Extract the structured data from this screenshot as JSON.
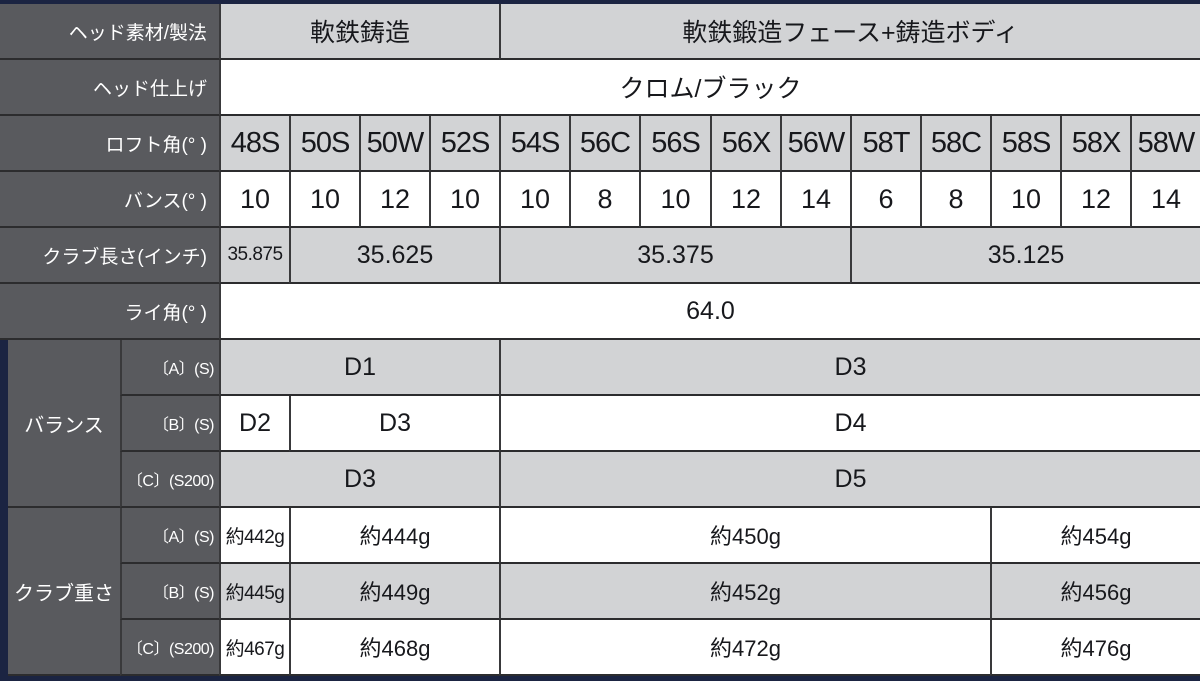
{
  "table_title": "wedge-spec-table",
  "colors": {
    "header_bg": "#595a5e",
    "cell_gray": "#d2d3d5",
    "cell_white": "#ffffff",
    "frame_navy": "#1b2442",
    "border": "#39393b",
    "text": "#17181c",
    "header_text": "#ffffff"
  },
  "columns": [
    "48S",
    "50S",
    "50W",
    "52S",
    "54S",
    "56C",
    "56S",
    "56X",
    "56W",
    "58T",
    "58C",
    "58S",
    "58X",
    "58W"
  ],
  "top_rows": [
    {
      "label": "ヘッド素材/製法",
      "shade": "gray",
      "kind": "data",
      "cells": [
        {
          "text": "軟鉄鋳造",
          "span": 4
        },
        {
          "text": "軟鉄鍛造フェース+鋳造ボディ",
          "span": 10
        }
      ]
    },
    {
      "label": "ヘッド仕上げ",
      "shade": "white",
      "kind": "data",
      "cells": [
        {
          "text": "クロム/ブラック",
          "span": 14
        }
      ]
    },
    {
      "label": "ロフト角(° )",
      "shade": "gray",
      "kind": "colhead",
      "cells": [
        {
          "text": "48S",
          "span": 1
        },
        {
          "text": "50S",
          "span": 1
        },
        {
          "text": "50W",
          "span": 1
        },
        {
          "text": "52S",
          "span": 1
        },
        {
          "text": "54S",
          "span": 1
        },
        {
          "text": "56C",
          "span": 1
        },
        {
          "text": "56S",
          "span": 1
        },
        {
          "text": "56X",
          "span": 1
        },
        {
          "text": "56W",
          "span": 1
        },
        {
          "text": "58T",
          "span": 1
        },
        {
          "text": "58C",
          "span": 1
        },
        {
          "text": "58S",
          "span": 1
        },
        {
          "text": "58X",
          "span": 1
        },
        {
          "text": "58W",
          "span": 1
        }
      ]
    },
    {
      "label": "バンス(° )",
      "shade": "white",
      "kind": "bounce",
      "cells": [
        {
          "text": "10",
          "span": 1
        },
        {
          "text": "10",
          "span": 1
        },
        {
          "text": "12",
          "span": 1
        },
        {
          "text": "10",
          "span": 1
        },
        {
          "text": "10",
          "span": 1
        },
        {
          "text": "8",
          "span": 1
        },
        {
          "text": "10",
          "span": 1
        },
        {
          "text": "12",
          "span": 1
        },
        {
          "text": "14",
          "span": 1
        },
        {
          "text": "6",
          "span": 1
        },
        {
          "text": "8",
          "span": 1
        },
        {
          "text": "10",
          "span": 1
        },
        {
          "text": "12",
          "span": 1
        },
        {
          "text": "14",
          "span": 1
        }
      ]
    },
    {
      "label": "クラブ長さ(インチ)",
      "shade": "gray",
      "kind": "data",
      "cells": [
        {
          "text": "35.875",
          "span": 1
        },
        {
          "text": "35.625",
          "span": 3
        },
        {
          "text": "35.375",
          "span": 5
        },
        {
          "text": "35.125",
          "span": 5
        }
      ]
    },
    {
      "label": "ライ角(° )",
      "shade": "white",
      "kind": "data",
      "cells": [
        {
          "text": "64.0",
          "span": 14
        }
      ]
    }
  ],
  "sections": [
    {
      "label": "バランス",
      "rows": [
        {
          "sublabel": "〔A〕(S)",
          "shade": "gray",
          "kind": "data",
          "cells": [
            {
              "text": "D1",
              "span": 4
            },
            {
              "text": "D3",
              "span": 10
            }
          ]
        },
        {
          "sublabel": "〔B〕(S)",
          "shade": "white",
          "kind": "data",
          "cells": [
            {
              "text": "D2",
              "span": 1
            },
            {
              "text": "D3",
              "span": 3
            },
            {
              "text": "D4",
              "span": 10
            }
          ]
        },
        {
          "sublabel": "〔C〕(S200)",
          "shade": "gray",
          "kind": "data",
          "cells": [
            {
              "text": "D3",
              "span": 4
            },
            {
              "text": "D5",
              "span": 10
            }
          ]
        }
      ]
    },
    {
      "label": "クラブ重さ",
      "rows": [
        {
          "sublabel": "〔A〕(S)",
          "shade": "white",
          "kind": "weight",
          "cells": [
            {
              "text": "約442g",
              "span": 1
            },
            {
              "text": "約444g",
              "span": 3
            },
            {
              "text": "約450g",
              "span": 7
            },
            {
              "text": "約454g",
              "span": 3
            }
          ]
        },
        {
          "sublabel": "〔B〕(S)",
          "shade": "gray",
          "kind": "weight",
          "cells": [
            {
              "text": "約445g",
              "span": 1
            },
            {
              "text": "約449g",
              "span": 3
            },
            {
              "text": "約452g",
              "span": 7
            },
            {
              "text": "約456g",
              "span": 3
            }
          ]
        },
        {
          "sublabel": "〔C〕(S200)",
          "shade": "white",
          "kind": "weight",
          "cells": [
            {
              "text": "約467g",
              "span": 1
            },
            {
              "text": "約468g",
              "span": 3
            },
            {
              "text": "約472g",
              "span": 7
            },
            {
              "text": "約476g",
              "span": 3
            }
          ]
        }
      ]
    }
  ]
}
